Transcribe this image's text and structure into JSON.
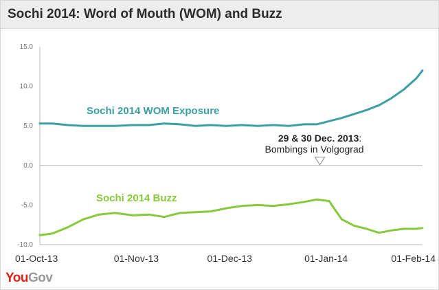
{
  "header": {
    "title": "Sochi 2014: Word of Mouth (WOM) and Buzz"
  },
  "logo": {
    "you": "You",
    "gov": "Gov"
  },
  "colors": {
    "wom": "#3c9fa3",
    "buzz": "#86c93b",
    "axis": "#b9b9b9",
    "tick_text": "#7a7a7a",
    "title_bg": "#ededed",
    "logo_red": "#e2231a"
  },
  "chart_data": {
    "type": "line",
    "title": "Sochi 2014: Word of Mouth (WOM) and Buzz",
    "xlabel": "",
    "ylabel": "",
    "x_range": [
      "2013-10-01",
      "2014-02-01"
    ],
    "ylim": [
      -10,
      15
    ],
    "y_ticks": [
      "15.0",
      "10.0",
      "5.0",
      "0.0",
      "-5.0",
      "-10.0"
    ],
    "y_tick_values": [
      15,
      10,
      5,
      0,
      -5,
      -10
    ],
    "x_ticks": [
      "01-Oct-13",
      "01-Nov-13",
      "01-Dec-13",
      "01-Jan-14",
      "01-Feb-14"
    ],
    "x_tick_dates": [
      "2013-10-01",
      "2013-11-01",
      "2013-12-01",
      "2014-01-01",
      "2014-02-01"
    ],
    "grid": false,
    "legend": "inline labels",
    "series": [
      {
        "name": "Sochi 2014 WOM Exposure",
        "color": "#3c9fa3",
        "x": [
          "2013-10-01",
          "2013-10-05",
          "2013-10-10",
          "2013-10-15",
          "2013-10-20",
          "2013-10-25",
          "2013-10-31",
          "2013-11-05",
          "2013-11-10",
          "2013-11-15",
          "2013-11-20",
          "2013-11-25",
          "2013-11-30",
          "2013-12-05",
          "2013-12-10",
          "2013-12-15",
          "2013-12-20",
          "2013-12-25",
          "2013-12-29",
          "2014-01-02",
          "2014-01-06",
          "2014-01-10",
          "2014-01-14",
          "2014-01-18",
          "2014-01-22",
          "2014-01-26",
          "2014-01-30",
          "2014-02-01"
        ],
        "y": [
          5.3,
          5.3,
          5.1,
          5.0,
          5.0,
          5.0,
          5.1,
          5.1,
          5.3,
          5.2,
          5.0,
          5.1,
          5.0,
          5.1,
          5.0,
          5.1,
          5.0,
          5.2,
          5.2,
          5.6,
          6.0,
          6.5,
          7.0,
          7.6,
          8.5,
          9.6,
          11.0,
          12.0
        ]
      },
      {
        "name": "Sochi 2014 Buzz",
        "color": "#86c93b",
        "x": [
          "2013-10-01",
          "2013-10-05",
          "2013-10-10",
          "2013-10-15",
          "2013-10-20",
          "2013-10-25",
          "2013-10-31",
          "2013-11-05",
          "2013-11-10",
          "2013-11-15",
          "2013-11-20",
          "2013-11-25",
          "2013-11-30",
          "2013-12-05",
          "2013-12-10",
          "2013-12-15",
          "2013-12-20",
          "2013-12-25",
          "2013-12-29",
          "2014-01-02",
          "2014-01-06",
          "2014-01-10",
          "2014-01-14",
          "2014-01-18",
          "2014-01-22",
          "2014-01-26",
          "2014-01-30",
          "2014-02-01"
        ],
        "y": [
          -8.8,
          -8.6,
          -7.8,
          -6.8,
          -6.2,
          -6.0,
          -6.3,
          -6.2,
          -6.5,
          -6.0,
          -5.9,
          -5.8,
          -5.4,
          -5.1,
          -5.0,
          -5.1,
          -4.9,
          -4.6,
          -4.3,
          -4.5,
          -6.8,
          -7.6,
          -8.0,
          -8.5,
          -8.2,
          -8.0,
          -8.0,
          -7.9
        ]
      }
    ],
    "annotations": [
      {
        "bold": "29 & 30 Dec. 2013",
        "colon": ":",
        "text": "Bombings in Volgograd",
        "x": "2013-12-30",
        "y": 0
      }
    ]
  }
}
